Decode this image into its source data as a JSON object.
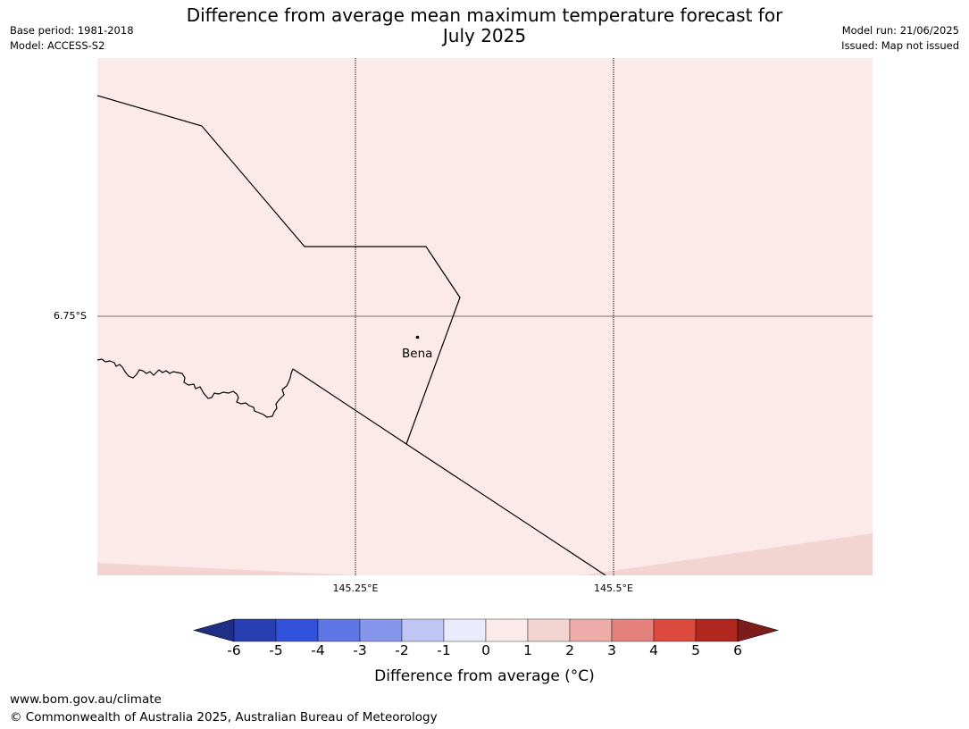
{
  "header": {
    "title_line1": "Difference from average mean maximum temperature forecast for",
    "title_line2": "July 2025",
    "base_period": "Base period: 1981-2018",
    "model": "Model: ACCESS-S2",
    "model_run": "Model run: 21/06/2025",
    "issued": "Issued: Map not issued"
  },
  "map": {
    "lat_label": "6.75°S",
    "lon_labels": [
      "145.25°E",
      "145.5°E"
    ],
    "place": {
      "name": "Bena"
    },
    "colors": {
      "background": "#fbeae9",
      "warm_zone": "#f2d4d1",
      "border": "#000000",
      "graticule_lat": "#7a6a6a"
    }
  },
  "colorbar": {
    "ticks": [
      "-6",
      "-5",
      "-4",
      "-3",
      "-2",
      "-1",
      "0",
      "1",
      "2",
      "3",
      "4",
      "5",
      "6"
    ],
    "colors": [
      "#1f2f86",
      "#283fb4",
      "#3352dc",
      "#5e75e4",
      "#8596ec",
      "#c0c7f5",
      "#e9ebfd",
      "#fbeae9",
      "#f2d4d1",
      "#edaca7",
      "#e5817c",
      "#dc4a3f",
      "#b1271f",
      "#7d1c1a"
    ],
    "label": "Difference from average (°C)"
  },
  "footer": {
    "url": "www.bom.gov.au/climate",
    "copyright": "© Commonwealth of Australia 2025, Australian Bureau of Meteorology"
  }
}
